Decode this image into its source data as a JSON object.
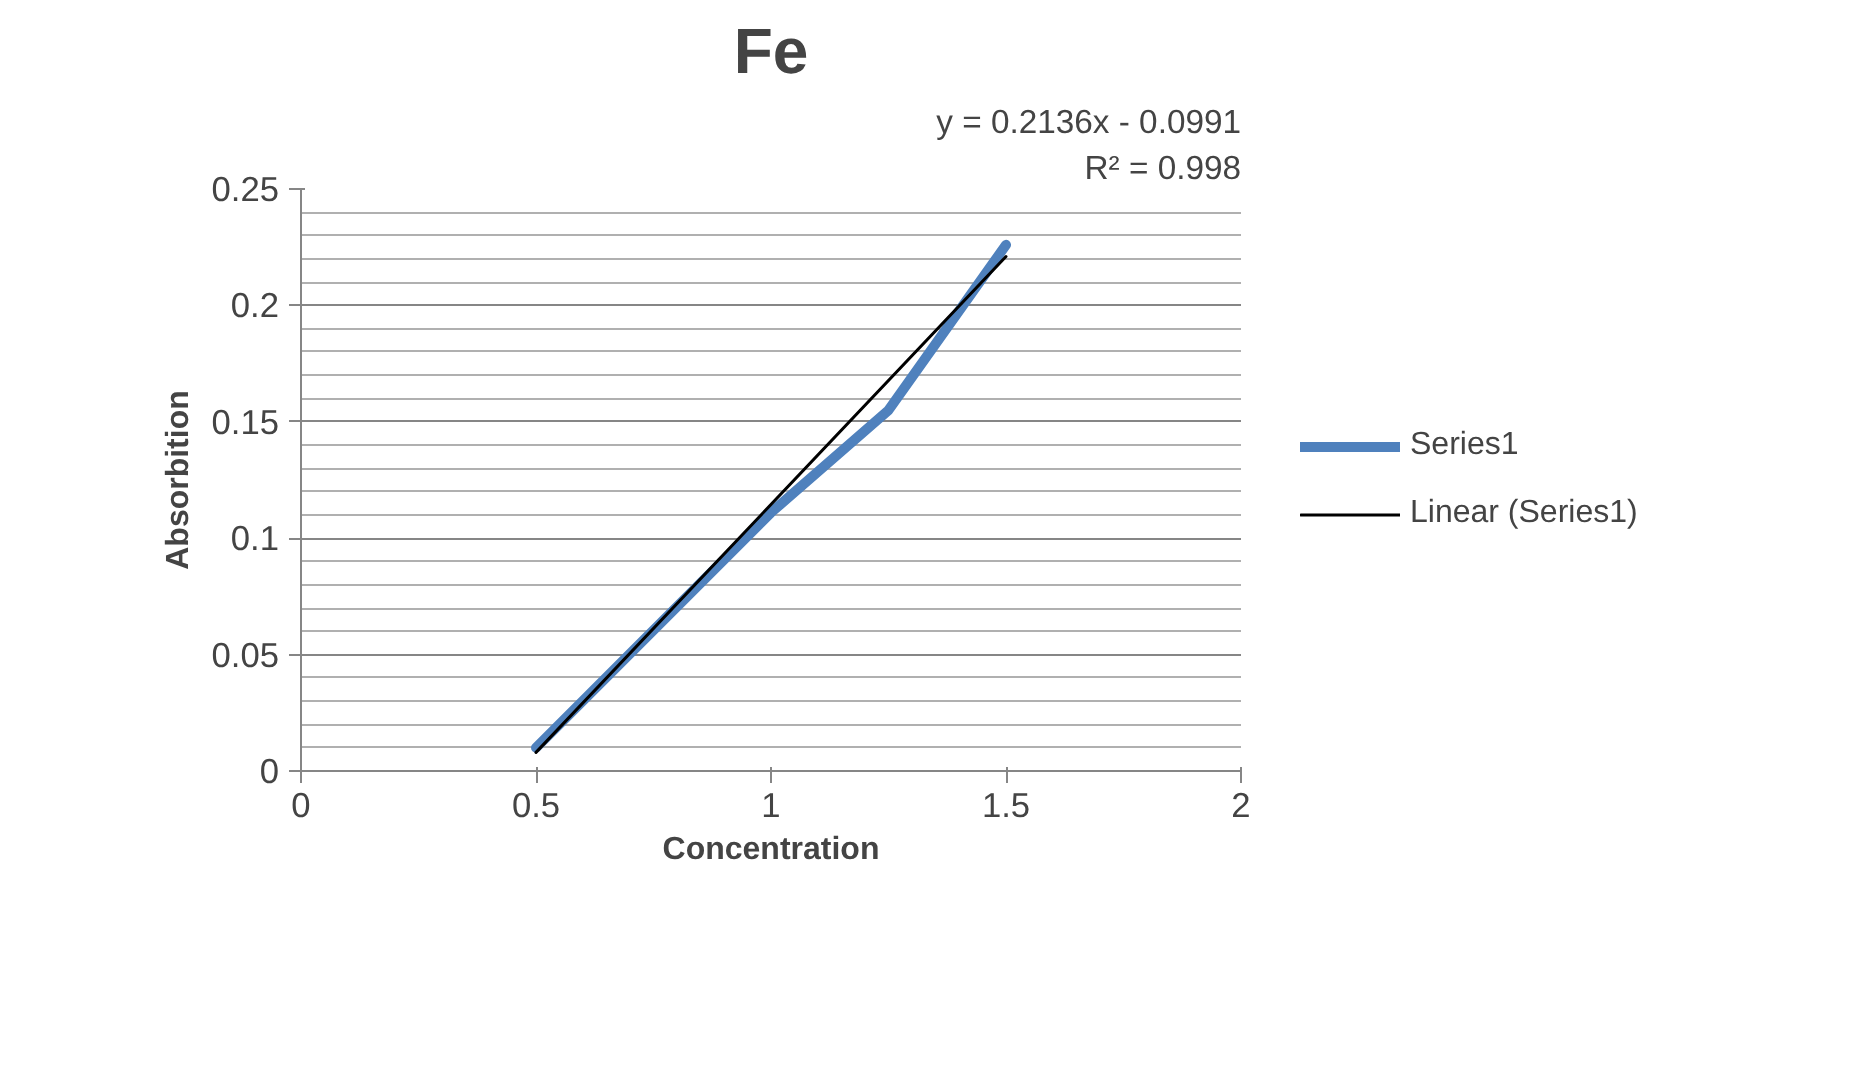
{
  "chart_data": {
    "type": "line",
    "title": "Fe",
    "xlabel": "Concentration",
    "ylabel": "Absorbition",
    "x": [
      0.5,
      1,
      1.25,
      1.5
    ],
    "series": [
      {
        "name": "Series1",
        "color": "#4f81bd",
        "values": [
          0.01,
          0.111,
          0.155,
          0.226
        ]
      },
      {
        "name": "Linear (Series1)",
        "color": "#000000",
        "type": "line",
        "x": [
          0.5,
          1.5
        ],
        "values": [
          0.008,
          0.221
        ]
      }
    ],
    "xlim": [
      0,
      2
    ],
    "xticks": [
      0,
      0.5,
      1,
      1.5,
      2
    ],
    "ylim": [
      0,
      0.25
    ],
    "yticks": [
      0,
      0.05,
      0.1,
      0.15,
      0.2,
      0.25
    ],
    "grid": "y",
    "legend": "right",
    "annotations": [
      "y = 0.2136x - 0.0991",
      "R² = 0.998"
    ]
  }
}
